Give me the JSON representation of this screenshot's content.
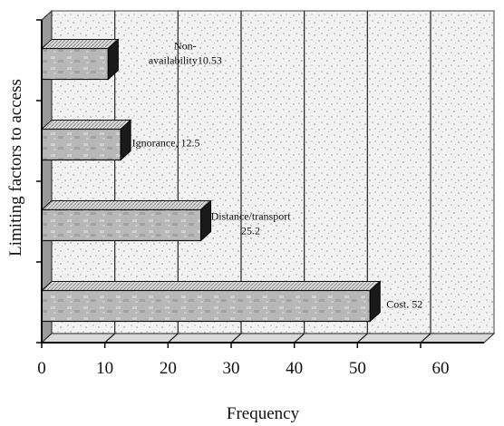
{
  "chart_data": {
    "type": "bar",
    "orientation": "horizontal",
    "three_d": true,
    "title": "",
    "xlabel": "Frequency",
    "ylabel": "Limiting factors to access",
    "xlim": [
      0,
      60
    ],
    "x_ticks": [
      "0",
      "10",
      "20",
      "30",
      "40",
      "50",
      "60"
    ],
    "grid": true,
    "categories": [
      "Cost",
      "Distance/transport",
      "Ignorance",
      "Non-availability"
    ],
    "values": [
      52,
      25.2,
      12.5,
      10.53
    ],
    "data_labels": [
      [
        "Cost. 52"
      ],
      [
        "Distance/transport",
        "25.2"
      ],
      [
        "Ignorance, 12.5"
      ],
      [
        "Non-",
        "availability10.53"
      ]
    ],
    "colors": {
      "bar_face": "#b3b3b3",
      "bar_dark": "#1a1a1a",
      "wall": "#f1f1f1",
      "grid": "#222222"
    }
  }
}
